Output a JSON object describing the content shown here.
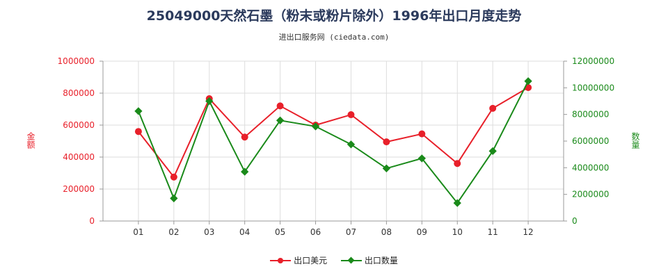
{
  "title": "25049000天然石墨（粉末或粉片除外）1996年出口月度走势",
  "subtitle": "进出口服务网 (ciedata.com)",
  "chart_data": {
    "type": "line",
    "categories": [
      "01",
      "02",
      "03",
      "04",
      "05",
      "06",
      "07",
      "08",
      "09",
      "10",
      "11",
      "12"
    ],
    "y_left": {
      "label": "金额",
      "min": 0,
      "max": 1000000,
      "ticks": [
        "0",
        "200000",
        "400000",
        "600000",
        "800000",
        "1000000"
      ],
      "color": "#e8202a"
    },
    "y_right": {
      "label": "数量",
      "min": 0,
      "max": 12000000,
      "ticks": [
        "0",
        "2000000",
        "4000000",
        "6000000",
        "8000000",
        "10000000",
        "12000000"
      ],
      "color": "#1a8a1a"
    },
    "series": [
      {
        "name": "出口美元",
        "axis": "left",
        "color": "#e8202a",
        "marker": "circle",
        "values": [
          560000,
          275000,
          765000,
          525000,
          720000,
          600000,
          665000,
          495000,
          545000,
          360000,
          705000,
          835000
        ]
      },
      {
        "name": "出口数量",
        "axis": "right",
        "color": "#1a8a1a",
        "marker": "diamond",
        "values": [
          8250000,
          1700000,
          9000000,
          3700000,
          7550000,
          7100000,
          5750000,
          3950000,
          4700000,
          1350000,
          5250000,
          10500000
        ]
      }
    ],
    "grid": true,
    "legend_position": "bottom"
  }
}
